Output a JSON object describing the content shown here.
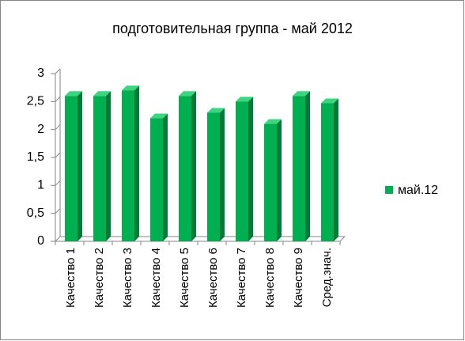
{
  "chart_data": {
    "type": "bar",
    "title": "подготовительная группа - май 2012",
    "categories": [
      "Качество 1",
      "Качество 2",
      "Качество 3",
      "Качество 4",
      "Качество 5",
      "Качество 6",
      "Качество 7",
      "Качество 8",
      "Качество 9",
      "Сред.знач."
    ],
    "series": [
      {
        "name": "май.12",
        "color": "#00b050",
        "values": [
          2.6,
          2.6,
          2.7,
          2.2,
          2.6,
          2.3,
          2.5,
          2.1,
          2.6,
          2.47
        ]
      }
    ],
    "ylim": [
      0,
      3
    ],
    "yticks": [
      0,
      {
        "value": 0.5,
        "label": "0,5"
      },
      1,
      {
        "value": 1.5,
        "label": "1,5"
      },
      2,
      {
        "value": 2.5,
        "label": "2,5"
      },
      3
    ],
    "grid": false,
    "legend": "right"
  }
}
